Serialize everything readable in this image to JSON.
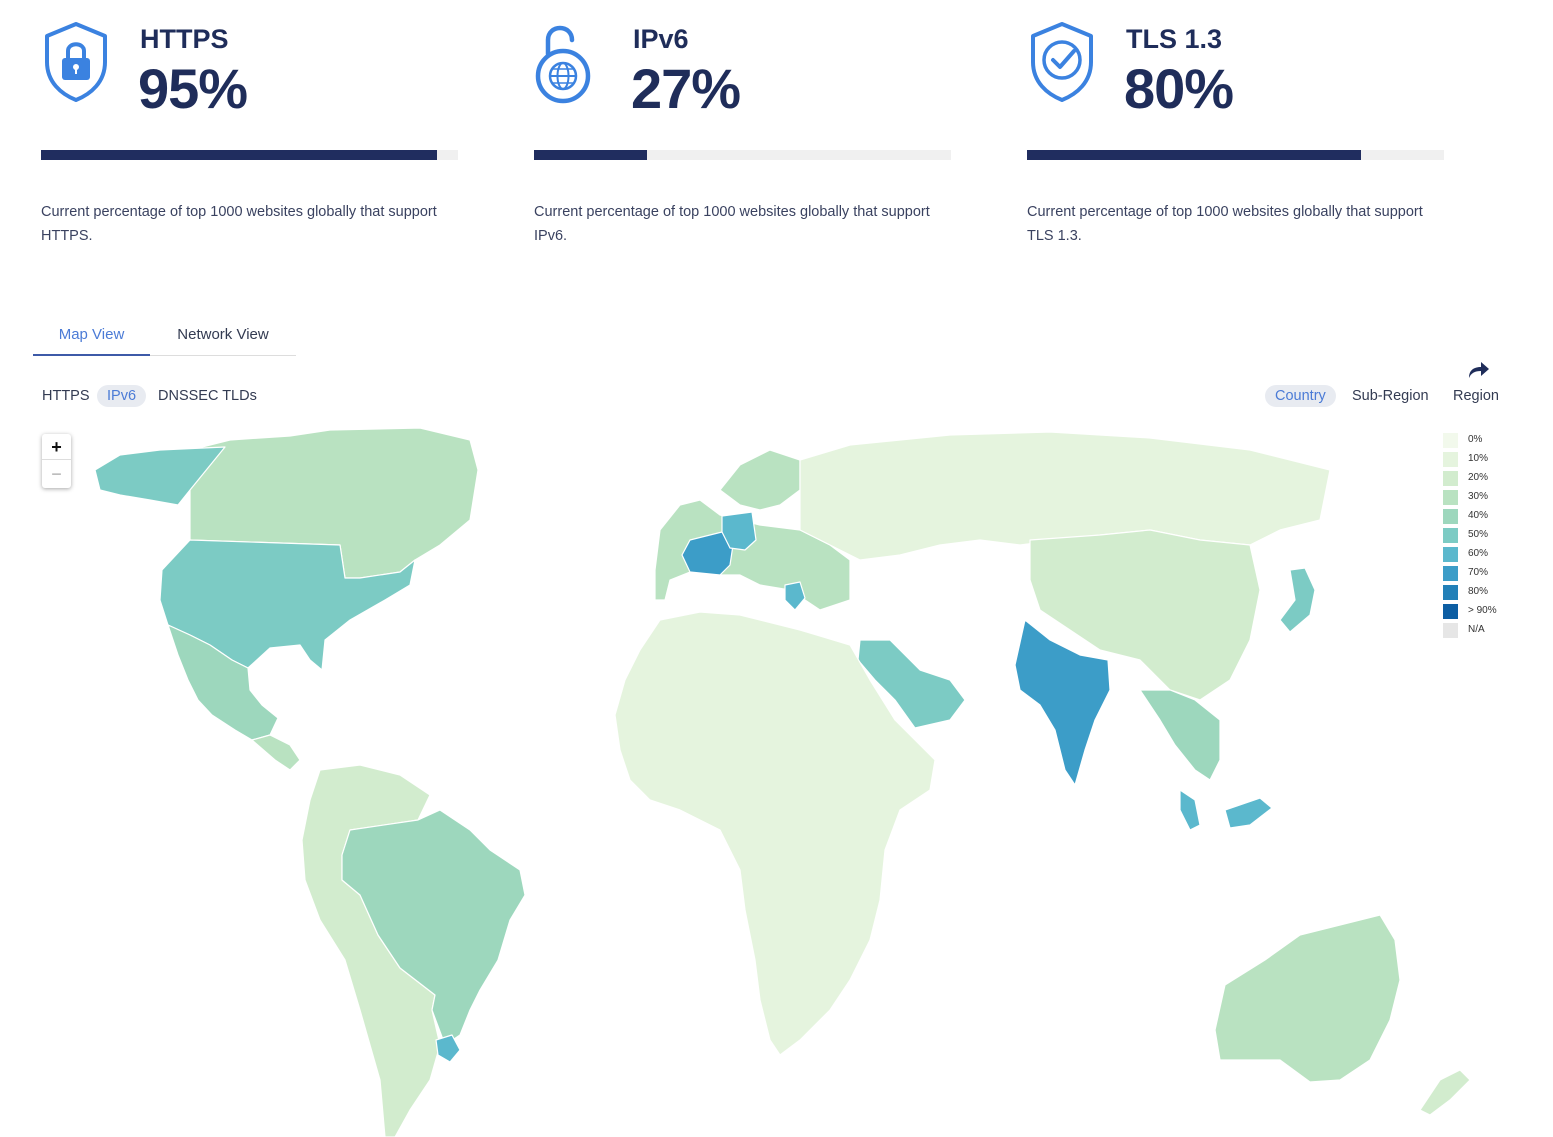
{
  "stats": [
    {
      "name": "HTTPS",
      "value": "95%",
      "fraction": 0.95,
      "icon": "shield-lock-icon",
      "description": "Current percentage of top 1000 websites globally that support HTTPS."
    },
    {
      "name": "IPv6",
      "value": "27%",
      "fraction": 0.27,
      "icon": "unlocked-globe-icon",
      "description": "Current percentage of top 1000 websites globally that support IPv6."
    },
    {
      "name": "TLS 1.3",
      "value": "80%",
      "fraction": 0.8,
      "icon": "shield-check-icon",
      "description": "Current percentage of top 1000 websites globally that support TLS 1.3."
    }
  ],
  "colors": {
    "accent": "#4b7bd6",
    "icon_blue": "#3b82e0",
    "bar_fill": "#202d5f",
    "bar_track": "#f0f0f0",
    "text_dark": "#1f2d5a"
  },
  "view_tabs": [
    {
      "label": "Map View",
      "active": true
    },
    {
      "label": "Network View",
      "active": false
    }
  ],
  "metric_filters": [
    {
      "label": "HTTPS",
      "active": false
    },
    {
      "label": "IPv6",
      "active": true
    },
    {
      "label": "DNSSEC TLDs",
      "active": false
    }
  ],
  "region_filters": [
    {
      "label": "Country",
      "active": true
    },
    {
      "label": "Sub-Region",
      "active": false
    },
    {
      "label": "Region",
      "active": false
    }
  ],
  "share_icon": "share-arrow-icon",
  "zoom": {
    "in_label": "+",
    "out_label": "−"
  },
  "legend": [
    {
      "label": "0%",
      "color": "#f2f9ec"
    },
    {
      "label": "10%",
      "color": "#e5f4de"
    },
    {
      "label": "20%",
      "color": "#d2ecce"
    },
    {
      "label": "30%",
      "color": "#b9e2c1"
    },
    {
      "label": "40%",
      "color": "#9dd7bd"
    },
    {
      "label": "50%",
      "color": "#7ccbc4"
    },
    {
      "label": "60%",
      "color": "#5bb8cd"
    },
    {
      "label": "70%",
      "color": "#3c9dc8"
    },
    {
      "label": "80%",
      "color": "#2280b8"
    },
    {
      "label": "> 90%",
      "color": "#0d5ea3"
    },
    {
      "label": "N/A",
      "color": "#e6e6e6"
    }
  ],
  "map_regions": [
    {
      "name": "North America north",
      "level": 3
    },
    {
      "name": "Alaska",
      "level": 5
    },
    {
      "name": "United States",
      "level": 5
    },
    {
      "name": "Mexico",
      "level": 4
    },
    {
      "name": "Central America",
      "level": 3
    },
    {
      "name": "South America west",
      "level": 2
    },
    {
      "name": "Brazil",
      "level": 4
    },
    {
      "name": "Uruguay",
      "level": 6
    },
    {
      "name": "Western Europe",
      "level": 3
    },
    {
      "name": "France",
      "level": 7
    },
    {
      "name": "Germany",
      "level": 6
    },
    {
      "name": "Scandinavia",
      "level": 3
    },
    {
      "name": "Greece",
      "level": 6
    },
    {
      "name": "Russia",
      "level": 1
    },
    {
      "name": "China",
      "level": 2
    },
    {
      "name": "India",
      "level": 7
    },
    {
      "name": "Saudi Arabia",
      "level": 5
    },
    {
      "name": "Japan",
      "level": 5
    },
    {
      "name": "Southeast Asia",
      "level": 4
    },
    {
      "name": "Malaysia",
      "level": 6
    },
    {
      "name": "Africa",
      "level": 1
    },
    {
      "name": "Australia",
      "level": 3
    },
    {
      "name": "New Zealand",
      "level": 2
    }
  ]
}
